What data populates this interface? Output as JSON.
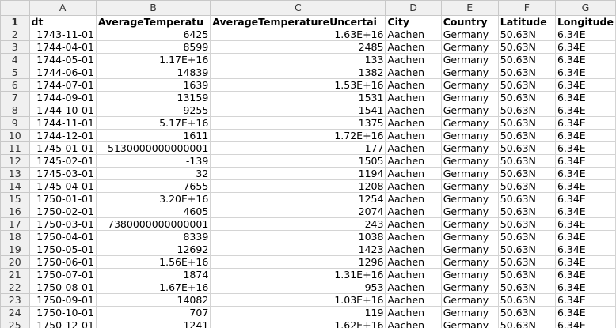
{
  "columns": [
    "A",
    "B",
    "C",
    "D",
    "E",
    "F",
    "G"
  ],
  "header_row": {
    "num": "1",
    "cells": [
      "dt",
      "AverageTemperatu",
      "AverageTemperatureUncertai",
      "City",
      "Country",
      "Latitude",
      "Longitude"
    ]
  },
  "rows": [
    {
      "num": "2",
      "cells": [
        "1743-11-01",
        "6425",
        "1.63E+16",
        "Aachen",
        "Germany",
        "50.63N",
        "6.34E"
      ]
    },
    {
      "num": "3",
      "cells": [
        "1744-04-01",
        "8599",
        "2485",
        "Aachen",
        "Germany",
        "50.63N",
        "6.34E"
      ]
    },
    {
      "num": "4",
      "cells": [
        "1744-05-01",
        "1.17E+16",
        "133",
        "Aachen",
        "Germany",
        "50.63N",
        "6.34E"
      ]
    },
    {
      "num": "5",
      "cells": [
        "1744-06-01",
        "14839",
        "1382",
        "Aachen",
        "Germany",
        "50.63N",
        "6.34E"
      ]
    },
    {
      "num": "6",
      "cells": [
        "1744-07-01",
        "1639",
        "1.53E+16",
        "Aachen",
        "Germany",
        "50.63N",
        "6.34E"
      ]
    },
    {
      "num": "7",
      "cells": [
        "1744-09-01",
        "13159",
        "1531",
        "Aachen",
        "Germany",
        "50.63N",
        "6.34E"
      ]
    },
    {
      "num": "8",
      "cells": [
        "1744-10-01",
        "9255",
        "1541",
        "Aachen",
        "Germany",
        "50.63N",
        "6.34E"
      ]
    },
    {
      "num": "9",
      "cells": [
        "1744-11-01",
        "5.17E+16",
        "1375",
        "Aachen",
        "Germany",
        "50.63N",
        "6.34E"
      ]
    },
    {
      "num": "10",
      "cells": [
        "1744-12-01",
        "1611",
        "1.72E+16",
        "Aachen",
        "Germany",
        "50.63N",
        "6.34E"
      ]
    },
    {
      "num": "11",
      "cells": [
        "1745-01-01",
        "-5130000000000001",
        "177",
        "Aachen",
        "Germany",
        "50.63N",
        "6.34E"
      ]
    },
    {
      "num": "12",
      "cells": [
        "1745-02-01",
        "-139",
        "1505",
        "Aachen",
        "Germany",
        "50.63N",
        "6.34E"
      ]
    },
    {
      "num": "13",
      "cells": [
        "1745-03-01",
        "32",
        "1194",
        "Aachen",
        "Germany",
        "50.63N",
        "6.34E"
      ]
    },
    {
      "num": "14",
      "cells": [
        "1745-04-01",
        "7655",
        "1208",
        "Aachen",
        "Germany",
        "50.63N",
        "6.34E"
      ]
    },
    {
      "num": "15",
      "cells": [
        "1750-01-01",
        "3.20E+16",
        "1254",
        "Aachen",
        "Germany",
        "50.63N",
        "6.34E"
      ]
    },
    {
      "num": "16",
      "cells": [
        "1750-02-01",
        "4605",
        "2074",
        "Aachen",
        "Germany",
        "50.63N",
        "6.34E"
      ]
    },
    {
      "num": "17",
      "cells": [
        "1750-03-01",
        "7380000000000001",
        "243",
        "Aachen",
        "Germany",
        "50.63N",
        "6.34E"
      ]
    },
    {
      "num": "18",
      "cells": [
        "1750-04-01",
        "8339",
        "1038",
        "Aachen",
        "Germany",
        "50.63N",
        "6.34E"
      ]
    },
    {
      "num": "19",
      "cells": [
        "1750-05-01",
        "12692",
        "1423",
        "Aachen",
        "Germany",
        "50.63N",
        "6.34E"
      ]
    },
    {
      "num": "20",
      "cells": [
        "1750-06-01",
        "1.56E+16",
        "1296",
        "Aachen",
        "Germany",
        "50.63N",
        "6.34E"
      ]
    },
    {
      "num": "21",
      "cells": [
        "1750-07-01",
        "1874",
        "1.31E+16",
        "Aachen",
        "Germany",
        "50.63N",
        "6.34E"
      ]
    },
    {
      "num": "22",
      "cells": [
        "1750-08-01",
        "1.67E+16",
        "953",
        "Aachen",
        "Germany",
        "50.63N",
        "6.34E"
      ]
    },
    {
      "num": "23",
      "cells": [
        "1750-09-01",
        "14082",
        "1.03E+16",
        "Aachen",
        "Germany",
        "50.63N",
        "6.34E"
      ]
    },
    {
      "num": "24",
      "cells": [
        "1750-10-01",
        "707",
        "119",
        "Aachen",
        "Germany",
        "50.63N",
        "6.34E"
      ]
    },
    {
      "num": "25",
      "cells": [
        "1750-12-01",
        "1241",
        "1.62E+16",
        "Aachen",
        "Germany",
        "50.63N",
        "6.34E"
      ]
    }
  ]
}
